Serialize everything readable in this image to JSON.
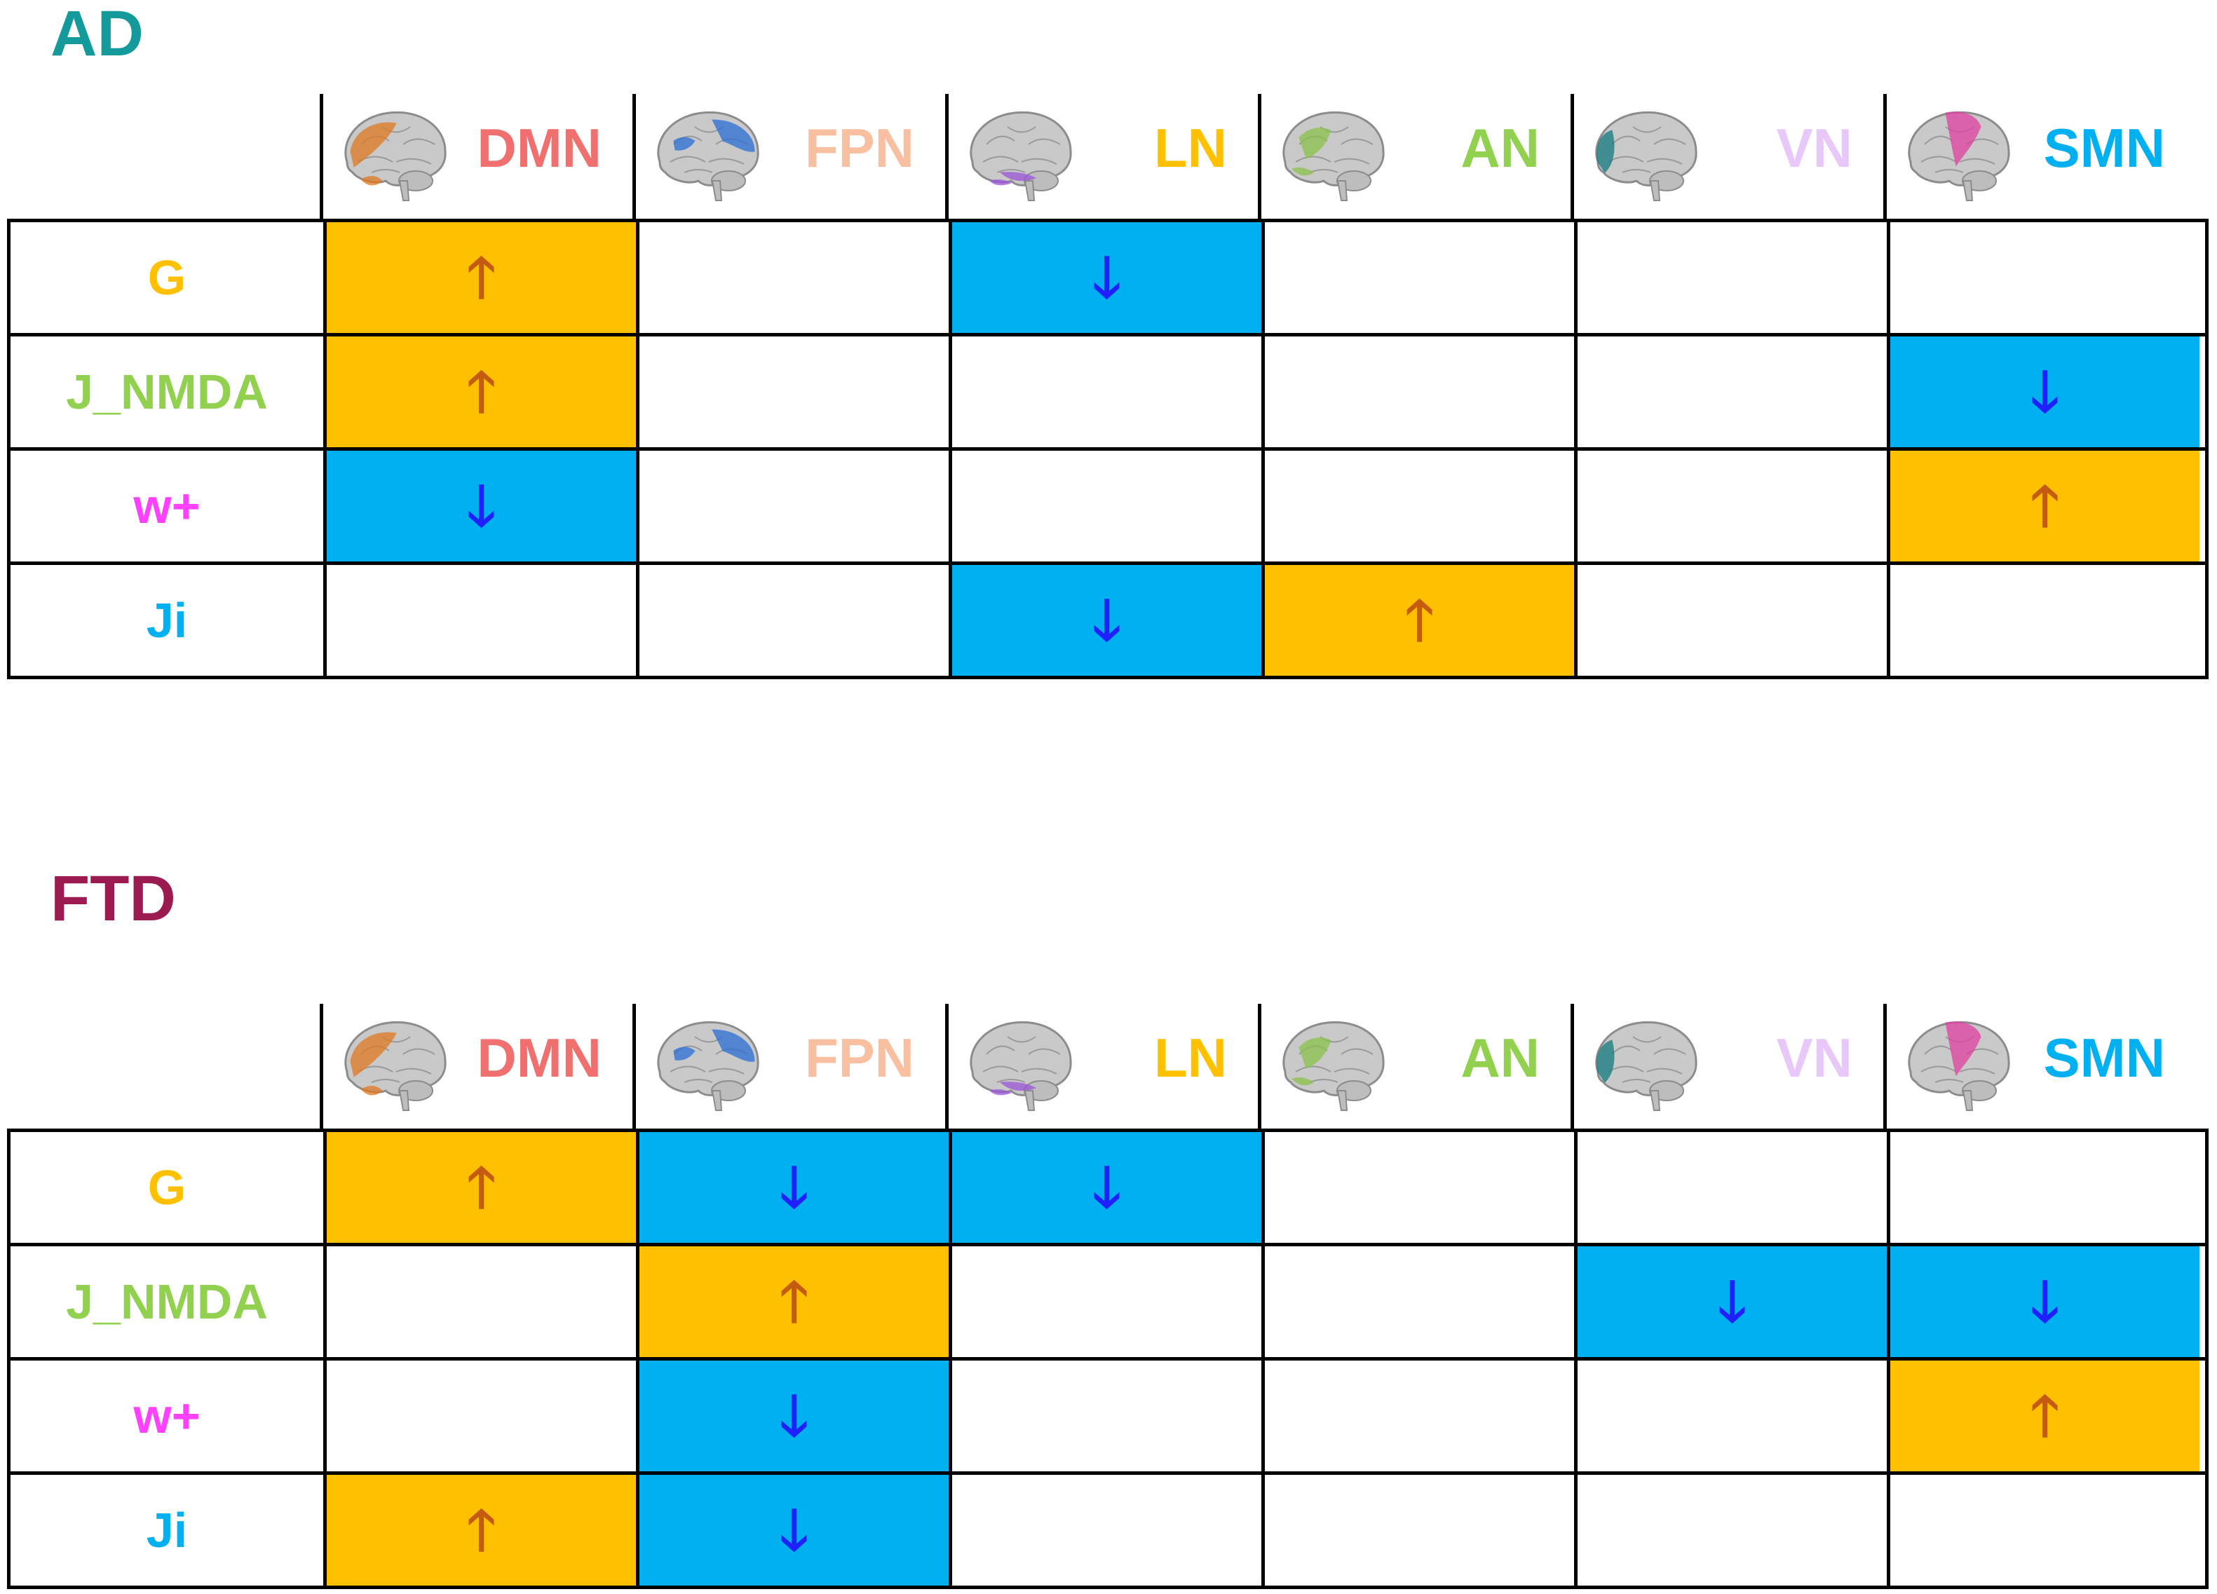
{
  "colors": {
    "ad_title": "#159a9c",
    "ftd_title": "#9b1a4f",
    "increase_fill": "#ffc000",
    "decrease_fill": "#00b0f0",
    "increase_arrow": "#c55a11",
    "decrease_arrow": "#1f1fff"
  },
  "networks": [
    {
      "label": "DMN",
      "color": "#f07070",
      "icon": "brain-dmn-icon",
      "brain_color": "#e07a20"
    },
    {
      "label": "FPN",
      "color": "#f8c0a0",
      "icon": "brain-fpn-icon",
      "brain_color": "#2a6fd6"
    },
    {
      "label": "LN",
      "color": "#ffc000",
      "icon": "brain-ln-icon",
      "brain_color": "#9a55d8"
    },
    {
      "label": "AN",
      "color": "#92d050",
      "icon": "brain-an-icon",
      "brain_color": "#8bc34a"
    },
    {
      "label": "VN",
      "color": "#e8c8f8",
      "icon": "brain-vn-icon",
      "brain_color": "#137a80"
    },
    {
      "label": "SMN",
      "color": "#00b0f0",
      "icon": "brain-smn-icon",
      "brain_color": "#e040a0"
    }
  ],
  "parameters": [
    {
      "label": "G",
      "color": "#ffc000"
    },
    {
      "label": "J_NMDA",
      "color": "#92d050"
    },
    {
      "label": "w+",
      "color": "#ff40ff"
    },
    {
      "label": "Ji",
      "color": "#00b0f0"
    }
  ],
  "arrow_symbols": {
    "up": "🡑",
    "down": "🡓"
  },
  "sections": [
    {
      "title": "AD",
      "matrix": [
        [
          "up",
          "",
          "down",
          "",
          "",
          ""
        ],
        [
          "up",
          "",
          "",
          "",
          "",
          "down"
        ],
        [
          "down",
          "",
          "",
          "",
          "",
          "up"
        ],
        [
          "",
          "",
          "down",
          "up",
          "",
          ""
        ]
      ]
    },
    {
      "title": "FTD",
      "matrix": [
        [
          "up",
          "down",
          "down",
          "",
          "",
          ""
        ],
        [
          "",
          "up",
          "",
          "",
          "down",
          "down"
        ],
        [
          "",
          "down",
          "",
          "",
          "",
          "up"
        ],
        [
          "up",
          "down",
          "",
          "",
          "",
          ""
        ]
      ]
    }
  ]
}
